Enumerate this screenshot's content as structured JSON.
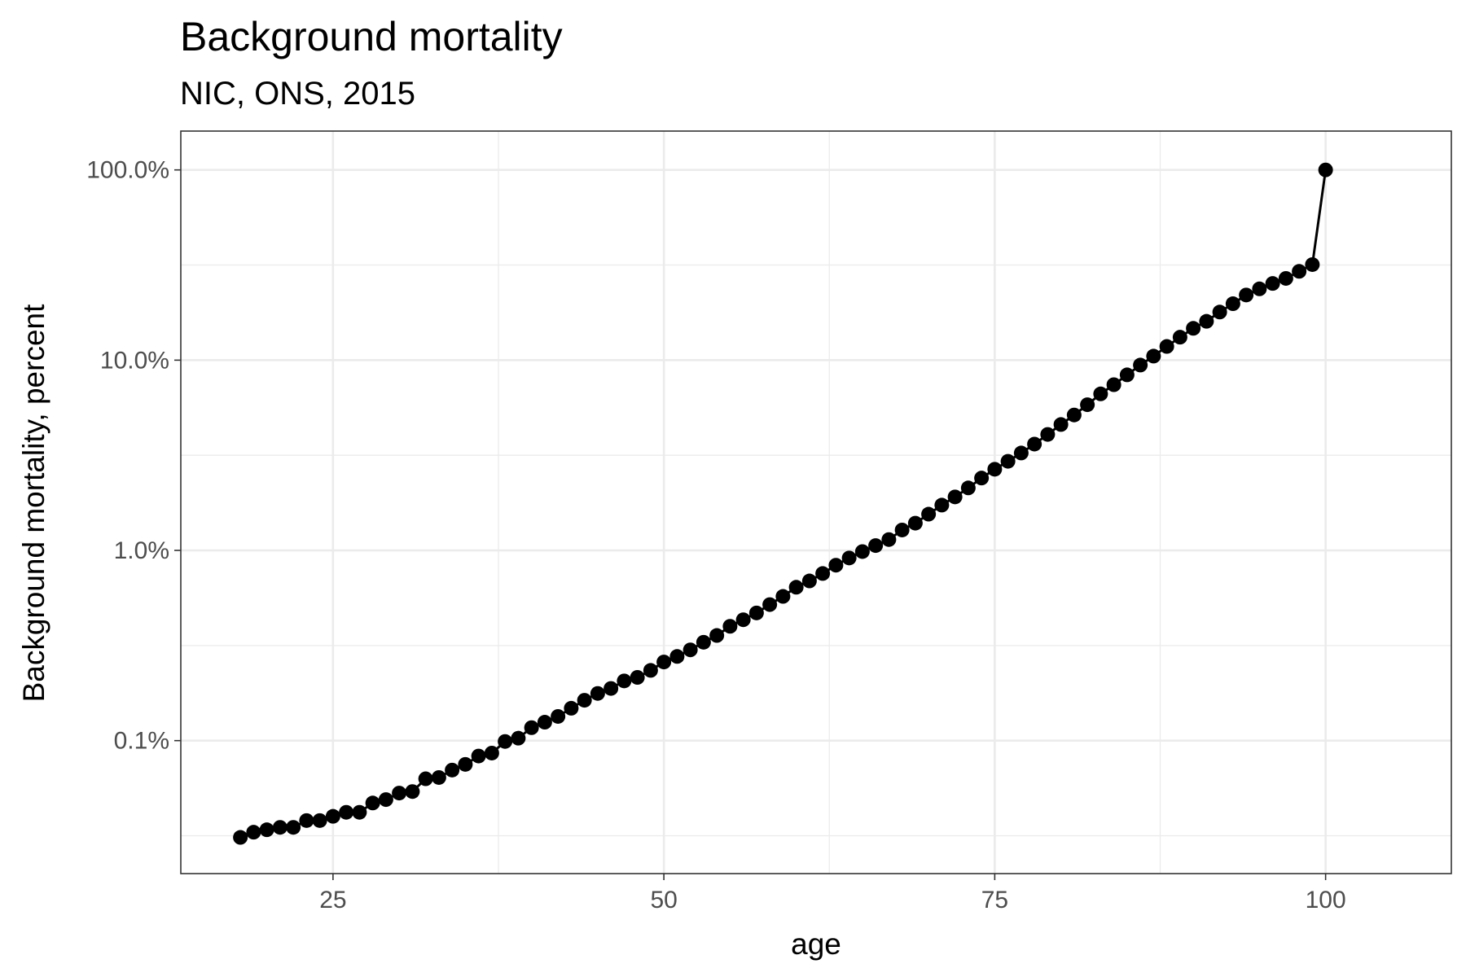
{
  "chart_data": {
    "type": "line",
    "title": "Background mortality",
    "subtitle": "NIC, ONS, 2015",
    "xlabel": "age",
    "ylabel": "Background mortality, percent",
    "x_scale": "linear",
    "y_scale": "log10",
    "xlim": [
      13.5,
      109.5
    ],
    "ylim": [
      0.0002,
      1.6
    ],
    "x_ticks": [
      25,
      50,
      75,
      100
    ],
    "x_tick_labels": [
      "25",
      "50",
      "75",
      "100"
    ],
    "y_ticks": [
      0.001,
      0.01,
      0.1,
      1
    ],
    "y_tick_labels": [
      "0.1%",
      "1.0%",
      "10.0%",
      "100.0%"
    ],
    "grid": true,
    "legend": "none",
    "line_color": "#000000",
    "series": [
      {
        "x": [
          18,
          19,
          20,
          21,
          22,
          23,
          24,
          25,
          26,
          27,
          28,
          29,
          30,
          31,
          32,
          33,
          34,
          35,
          36,
          37,
          38,
          39,
          40,
          41,
          42,
          43,
          44,
          45,
          46,
          47,
          48,
          49,
          50,
          51,
          52,
          53,
          54,
          55,
          56,
          57,
          58,
          59,
          60,
          61,
          62,
          63,
          64,
          65,
          66,
          67,
          68,
          69,
          70,
          71,
          72,
          73,
          74,
          75,
          76,
          77,
          78,
          79,
          80,
          81,
          82,
          83,
          84,
          85,
          86,
          87,
          88,
          89,
          90,
          91,
          92,
          93,
          94,
          95,
          96,
          97,
          98,
          99,
          100
        ],
        "y": [
          0.00031,
          0.00033,
          0.00034,
          0.00035,
          0.00035,
          0.00038,
          0.00038,
          0.0004,
          0.00042,
          0.00042,
          0.00047,
          0.00049,
          0.00053,
          0.00054,
          0.00063,
          0.00064,
          0.0007,
          0.00075,
          0.00083,
          0.00086,
          0.00099,
          0.00103,
          0.00117,
          0.00125,
          0.00134,
          0.00148,
          0.00163,
          0.00177,
          0.00188,
          0.00206,
          0.00215,
          0.00234,
          0.00259,
          0.00277,
          0.003,
          0.00329,
          0.00357,
          0.00399,
          0.00432,
          0.00469,
          0.00519,
          0.00573,
          0.0064,
          0.00691,
          0.00756,
          0.00836,
          0.00912,
          0.00986,
          0.0106,
          0.0114,
          0.0128,
          0.0139,
          0.0155,
          0.0173,
          0.0191,
          0.0213,
          0.024,
          0.0267,
          0.0294,
          0.0325,
          0.0362,
          0.0407,
          0.0459,
          0.0515,
          0.0583,
          0.0665,
          0.0743,
          0.0837,
          0.0942,
          0.105,
          0.118,
          0.132,
          0.147,
          0.16,
          0.179,
          0.198,
          0.22,
          0.237,
          0.253,
          0.269,
          0.293,
          0.318,
          1.0
        ]
      }
    ]
  }
}
